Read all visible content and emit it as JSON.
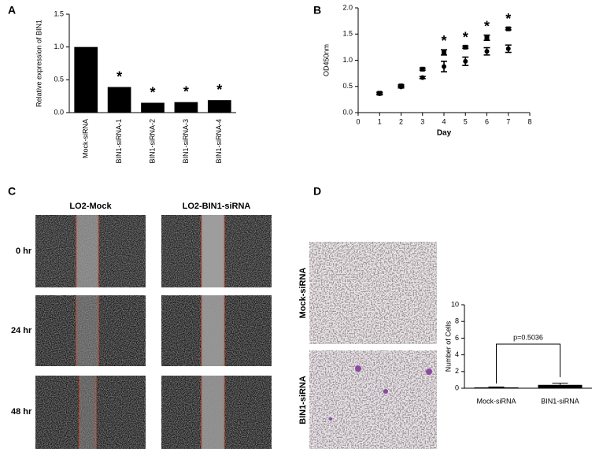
{
  "panel_labels": [
    "A",
    "B",
    "C",
    "D"
  ],
  "chart_data": [
    {
      "type": "bar",
      "ylabel": "Relative expression of BIN1",
      "categories": [
        "Mock-siRNA",
        "BIN1-siRNA-1",
        "BIN1-siRNA-2",
        "BIN1-siRNA-3",
        "BIN1-siRNA-4"
      ],
      "values": [
        1.0,
        0.39,
        0.15,
        0.16,
        0.19
      ],
      "color": "#000000",
      "annotations": [
        null,
        "*",
        "*",
        "*",
        "*"
      ],
      "ylim": [
        0,
        1.5
      ],
      "yticks": [
        {
          "value": 0,
          "label": "0.0"
        },
        {
          "value": 0.5,
          "label": "0.5"
        },
        {
          "value": 1,
          "label": "1.0"
        },
        {
          "value": 1.5,
          "label": "1.5"
        }
      ]
    },
    {
      "type": "line",
      "xlabel": "Day",
      "ylabel": "OD450nm",
      "x": [
        1,
        2,
        3,
        4,
        5,
        6,
        7
      ],
      "series": [
        {
          "color": "#000000",
          "marker": "square",
          "values": [
            0.37,
            0.51,
            0.83,
            1.15,
            1.25,
            1.43,
            1.6
          ],
          "errors": [
            0.02,
            0.02,
            0.02,
            0.05,
            0.02,
            0.05,
            0.02
          ]
        },
        {
          "color": "#000000",
          "marker": "circle",
          "values": [
            0.36,
            0.49,
            0.67,
            0.88,
            0.98,
            1.17,
            1.22
          ],
          "errors": [
            0.02,
            0.02,
            0.02,
            0.1,
            0.08,
            0.07,
            0.07
          ]
        }
      ],
      "annotations": [
        null,
        null,
        null,
        "*",
        "*",
        "*",
        "*"
      ],
      "xlim": [
        0,
        8
      ],
      "xticks": [
        0,
        1,
        2,
        3,
        4,
        5,
        6,
        7,
        8
      ],
      "ylim": [
        0,
        2
      ],
      "yticks": [
        {
          "value": 0,
          "label": "0.0"
        },
        {
          "value": 0.5,
          "label": "0.5"
        },
        {
          "value": 1,
          "label": "1.0"
        },
        {
          "value": 1.5,
          "label": "1.5"
        },
        {
          "value": 2,
          "label": "2.0"
        }
      ]
    },
    {
      "type": "bar",
      "ylabel": "Number of Cells",
      "categories": [
        "Mock-siRNA",
        "BIN1-siRNA"
      ],
      "values": [
        0.1,
        0.4
      ],
      "errors": [
        0.05,
        0.2
      ],
      "color": "#000000",
      "comparison": "p=0.5036",
      "ylim": [
        0,
        10
      ],
      "yticks": [
        0,
        2,
        4,
        6,
        8,
        10
      ]
    }
  ],
  "panel_c": {
    "columns": [
      "LO2-Mock",
      "LO2-BIN1-siRNA"
    ],
    "rows": [
      "0 hr",
      "24 hr",
      "48 hr"
    ]
  },
  "panel_d": {
    "rows": [
      "Mock-siRNA",
      "BIN1-siRNA"
    ]
  }
}
